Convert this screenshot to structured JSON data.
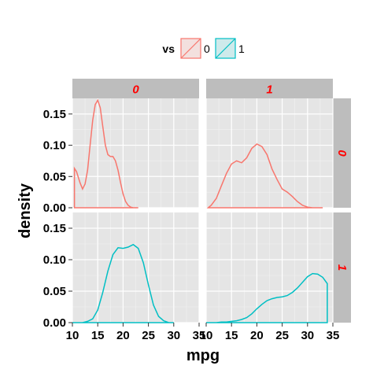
{
  "chart_data": {
    "type": "area",
    "xlabel": "mpg",
    "ylabel": "density",
    "xlim": [
      10,
      35
    ],
    "ylim": [
      0,
      0.175
    ],
    "x_ticks": [
      10,
      15,
      20,
      25,
      30,
      35
    ],
    "x_tick_labels": [
      "10",
      "15",
      "20",
      "25",
      "30",
      "35"
    ],
    "y_ticks": [
      0.0,
      0.05,
      0.1,
      0.15
    ],
    "y_tick_labels": [
      "0.00",
      "0.05",
      "0.10",
      "0.15"
    ],
    "grid": true,
    "legend": {
      "title": "vs",
      "position": "top",
      "entries": [
        {
          "label": "0",
          "color": "#F8766D"
        },
        {
          "label": "1",
          "color": "#00BFC4"
        }
      ]
    },
    "facets": {
      "col_strips": [
        "0",
        "1"
      ],
      "row_strips": [
        "0",
        "1"
      ],
      "strip_text_color": "#ff0000",
      "strip_fill": "#bdbdbd"
    },
    "series": [
      {
        "name": "0",
        "color": "#F8766D",
        "facet_row": 0,
        "x": [
          10.4,
          10.8,
          11.5,
          12.0,
          12.5,
          13.0,
          13.5,
          14.0,
          14.5,
          15.0,
          15.5,
          16.0,
          16.5,
          17.0,
          17.5,
          18.0,
          18.5,
          19.0,
          19.5,
          20.0,
          20.5,
          21.0,
          21.5,
          22.0,
          23.0
        ],
        "y": [
          0.063,
          0.058,
          0.04,
          0.03,
          0.038,
          0.06,
          0.1,
          0.14,
          0.165,
          0.172,
          0.16,
          0.13,
          0.1,
          0.085,
          0.082,
          0.082,
          0.075,
          0.06,
          0.04,
          0.022,
          0.01,
          0.004,
          0.001,
          0.0,
          0.0
        ]
      },
      {
        "name": "0",
        "color": "#F8766D",
        "facet_row": 0,
        "facet_col": 1,
        "x": [
          10.4,
          11,
          12,
          13,
          14,
          15,
          16,
          17,
          18,
          19,
          20,
          21,
          22,
          23,
          24,
          25,
          26,
          27,
          28,
          29,
          30,
          31,
          32,
          33
        ],
        "y": [
          0.0,
          0.004,
          0.015,
          0.035,
          0.055,
          0.07,
          0.075,
          0.072,
          0.08,
          0.095,
          0.102,
          0.098,
          0.085,
          0.062,
          0.045,
          0.03,
          0.025,
          0.018,
          0.01,
          0.004,
          0.001,
          0.0,
          0.0,
          0.0
        ]
      },
      {
        "name": "1",
        "color": "#00BFC4",
        "facet_row": 1,
        "facet_col": 0,
        "x": [
          10,
          12,
          13,
          14,
          15,
          16,
          17,
          18,
          19,
          20,
          21,
          22,
          23,
          24,
          25,
          26,
          27,
          28,
          29,
          30
        ],
        "y": [
          0.0,
          0.0,
          0.002,
          0.006,
          0.02,
          0.048,
          0.082,
          0.108,
          0.119,
          0.118,
          0.12,
          0.124,
          0.118,
          0.095,
          0.06,
          0.028,
          0.01,
          0.003,
          0.0,
          0.0
        ]
      },
      {
        "name": "1",
        "color": "#00BFC4",
        "facet_row": 1,
        "facet_col": 1,
        "x": [
          10,
          12,
          13,
          14,
          15,
          16,
          17,
          18,
          19,
          20,
          21,
          22,
          23,
          24,
          25,
          26,
          27,
          28,
          29,
          30,
          31,
          32,
          33,
          33.9
        ],
        "y": [
          0.0,
          0.0,
          0.001,
          0.001,
          0.002,
          0.003,
          0.005,
          0.008,
          0.014,
          0.022,
          0.029,
          0.035,
          0.038,
          0.04,
          0.041,
          0.043,
          0.048,
          0.055,
          0.064,
          0.073,
          0.078,
          0.077,
          0.072,
          0.062
        ]
      }
    ]
  }
}
